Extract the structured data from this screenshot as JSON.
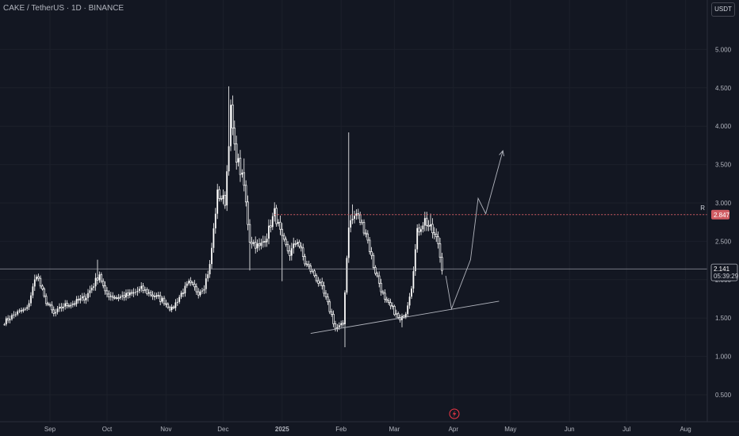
{
  "header": {
    "symbol_title": "CAKE / TetherUS · 1D · BINANCE",
    "currency_button": "USDT"
  },
  "chart_data": {
    "type": "candlestick",
    "title": "CAKE / TetherUS · 1D · BINANCE",
    "xlabel": "",
    "ylabel": "",
    "ylim": [
      0.25,
      5.55
    ],
    "y_ticks": [
      "0.500",
      "1.000",
      "1.500",
      "2.000",
      "2.500",
      "3.000",
      "3.500",
      "4.000",
      "4.500",
      "5.000"
    ],
    "x_ticks": [
      "Sep",
      "Oct",
      "Nov",
      "Dec",
      "2025",
      "Feb",
      "Mar",
      "Apr",
      "May",
      "Jun",
      "Jul",
      "Aug"
    ],
    "colors": {
      "up": "#ffffff",
      "down": "#ffffff",
      "wick": "#ffffff",
      "background": "#131722",
      "resistance": "#d05c63",
      "last_price": "#b2b5be",
      "drawing": "#b2b5be"
    },
    "current_price": {
      "label": "2.141",
      "value": 2.141,
      "countdown": "05:39:29"
    },
    "resistance": {
      "label": "R",
      "value": 2.847,
      "price_label": "2.847",
      "start": "2024-12-28"
    },
    "trendline": {
      "from": {
        "date": "2025-01-16",
        "price": 1.3
      },
      "to": {
        "date": "2025-04-25",
        "price": 1.72
      }
    },
    "projection": [
      {
        "date": "2025-03-28",
        "price": 2.05
      },
      {
        "date": "2025-03-31",
        "price": 1.62
      },
      {
        "date": "2025-04-10",
        "price": 2.26
      },
      {
        "date": "2025-04-14",
        "price": 3.06
      },
      {
        "date": "2025-04-18",
        "price": 2.86
      },
      {
        "date": "2025-04-27",
        "price": 3.68
      }
    ],
    "anchors": [
      [
        "2024-08-08",
        1.45
      ],
      [
        "2024-08-14",
        1.56
      ],
      [
        "2024-08-20",
        1.62
      ],
      [
        "2024-08-25",
        2.08
      ],
      [
        "2024-08-29",
        1.76
      ],
      [
        "2024-09-03",
        1.55
      ],
      [
        "2024-09-08",
        1.66
      ],
      [
        "2024-09-14",
        1.7
      ],
      [
        "2024-09-20",
        1.78
      ],
      [
        "2024-09-24",
        1.94
      ],
      [
        "2024-09-27",
        2.08
      ],
      [
        "2024-09-30",
        1.82
      ],
      [
        "2024-10-06",
        1.77
      ],
      [
        "2024-10-14",
        1.81
      ],
      [
        "2024-10-19",
        1.88
      ],
      [
        "2024-10-25",
        1.8
      ],
      [
        "2024-10-31",
        1.72
      ],
      [
        "2024-11-04",
        1.61
      ],
      [
        "2024-11-09",
        1.82
      ],
      [
        "2024-11-13",
        1.95
      ],
      [
        "2024-11-18",
        1.84
      ],
      [
        "2024-11-21",
        1.92
      ],
      [
        "2024-11-24",
        2.18
      ],
      [
        "2024-11-28",
        3.12
      ],
      [
        "2024-12-02",
        3.02
      ],
      [
        "2024-12-05",
        4.2
      ],
      [
        "2024-12-07",
        3.7
      ],
      [
        "2024-12-09",
        3.52
      ],
      [
        "2024-12-12",
        3.22
      ],
      [
        "2024-12-15",
        2.52
      ],
      [
        "2024-12-20",
        2.42
      ],
      [
        "2024-12-24",
        2.58
      ],
      [
        "2024-12-28",
        2.88
      ],
      [
        "2025-01-01",
        2.52
      ],
      [
        "2025-01-05",
        2.34
      ],
      [
        "2025-01-09",
        2.52
      ],
      [
        "2025-01-13",
        2.22
      ],
      [
        "2025-01-18",
        2.06
      ],
      [
        "2025-01-22",
        1.88
      ],
      [
        "2025-01-27",
        1.54
      ],
      [
        "2025-01-29",
        1.36
      ],
      [
        "2025-02-02",
        1.42
      ],
      [
        "2025-02-05",
        2.72
      ],
      [
        "2025-02-09",
        2.86
      ],
      [
        "2025-02-14",
        2.62
      ],
      [
        "2025-02-18",
        2.18
      ],
      [
        "2025-02-21",
        1.96
      ],
      [
        "2025-02-24",
        1.72
      ],
      [
        "2025-02-28",
        1.62
      ],
      [
        "2025-03-04",
        1.46
      ],
      [
        "2025-03-07",
        1.58
      ],
      [
        "2025-03-10",
        1.92
      ],
      [
        "2025-03-13",
        2.62
      ],
      [
        "2025-03-17",
        2.78
      ],
      [
        "2025-03-21",
        2.62
      ],
      [
        "2025-03-24",
        2.48
      ],
      [
        "2025-03-26",
        2.12
      ]
    ],
    "spikes": [
      [
        "2024-12-04",
        4.52
      ],
      [
        "2024-12-06",
        4.4
      ],
      [
        "2024-12-12",
        3.58
      ],
      [
        "2024-12-15",
        2.12
      ],
      [
        "2025-01-01",
        1.98
      ],
      [
        "2025-02-03",
        1.12
      ],
      [
        "2025-02-05",
        3.92
      ],
      [
        "2025-02-07",
        2.98
      ],
      [
        "2025-03-05",
        1.38
      ],
      [
        "2025-03-20",
        2.86
      ],
      [
        "2024-09-26",
        2.26
      ],
      [
        "2024-11-23",
        2.08
      ]
    ]
  },
  "bottom": {
    "alert_icon": "lightning-icon"
  }
}
